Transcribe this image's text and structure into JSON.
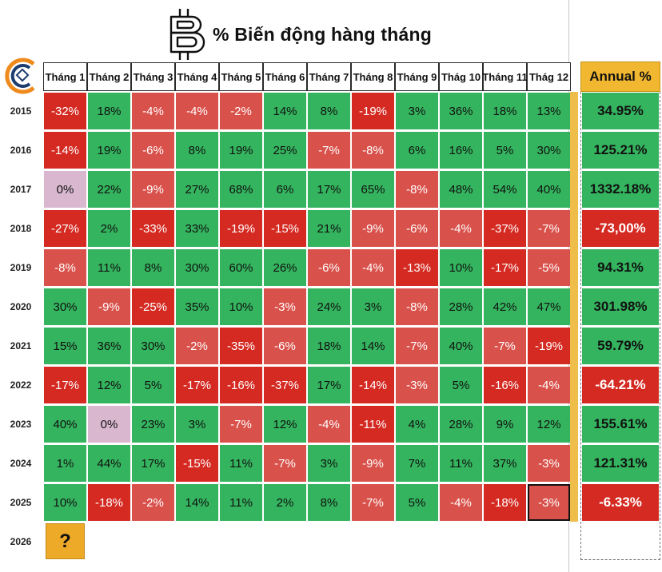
{
  "header": {
    "title": "% Biến động hàng tháng",
    "annual_label": "Annual %",
    "bitcoin_logo": "bitcoin-b-icon",
    "brand_logo": "brand-c-logo-icon"
  },
  "colors": {
    "positive": "#34b45e",
    "negative": "#d42a22",
    "zero": "#d8b7cf",
    "annual_header": "#f1b730",
    "question_box": "#eda928"
  },
  "chart_data": {
    "type": "heatmap",
    "title": "% Biến động hàng tháng",
    "columns": [
      "Tháng 1",
      "Tháng 2",
      "Tháng 3",
      "Tháng 4",
      "Tháng 5",
      "Tháng 6",
      "Tháng 7",
      "Tháng 8",
      "Tháng 9",
      "Thág 10",
      "Tháng 11",
      "Thág 12"
    ],
    "annual_column": "Annual %",
    "rows": [
      {
        "year": "2015",
        "values": [
          -32,
          18,
          -4,
          -4,
          -2,
          14,
          8,
          -19,
          3,
          36,
          18,
          13
        ],
        "annual": "34.95%"
      },
      {
        "year": "2016",
        "values": [
          -14,
          19,
          -6,
          8,
          19,
          25,
          -7,
          -8,
          6,
          16,
          5,
          30
        ],
        "annual": "125.21%"
      },
      {
        "year": "2017",
        "values": [
          0,
          22,
          -9,
          27,
          68,
          6,
          17,
          65,
          -8,
          48,
          54,
          40
        ],
        "annual": "1332.18%"
      },
      {
        "year": "2018",
        "values": [
          -27,
          2,
          -33,
          33,
          -19,
          -15,
          21,
          -9,
          -6,
          -4,
          -37,
          -7
        ],
        "annual": "-73,00%"
      },
      {
        "year": "2019",
        "values": [
          -8,
          11,
          8,
          30,
          60,
          26,
          -6,
          -4,
          -13,
          10,
          -17,
          -5
        ],
        "annual": "94.31%"
      },
      {
        "year": "2020",
        "values": [
          30,
          -9,
          -25,
          35,
          10,
          -3,
          24,
          3,
          -8,
          28,
          42,
          47
        ],
        "annual": "301.98%"
      },
      {
        "year": "2021",
        "values": [
          15,
          36,
          30,
          -2,
          -35,
          -6,
          18,
          14,
          -7,
          40,
          -7,
          -19
        ],
        "annual": "59.79%"
      },
      {
        "year": "2022",
        "values": [
          -17,
          12,
          5,
          -17,
          -16,
          -37,
          17,
          -14,
          -3,
          5,
          -16,
          -4
        ],
        "annual": "-64.21%"
      },
      {
        "year": "2023",
        "values": [
          40,
          0,
          23,
          3,
          -7,
          12,
          -4,
          -11,
          4,
          28,
          9,
          12
        ],
        "annual": "155.61%"
      },
      {
        "year": "2024",
        "values": [
          1,
          44,
          17,
          -15,
          11,
          -7,
          3,
          -9,
          7,
          11,
          37,
          -3
        ],
        "annual": "121.31%"
      },
      {
        "year": "2025",
        "values": [
          10,
          -18,
          -2,
          14,
          11,
          2,
          8,
          -7,
          5,
          -4,
          -18,
          -3
        ],
        "annual": "-6.33%"
      },
      {
        "year": "2026",
        "values": [],
        "annual": ""
      }
    ],
    "pending_marker": "?",
    "value_unit": "%"
  }
}
